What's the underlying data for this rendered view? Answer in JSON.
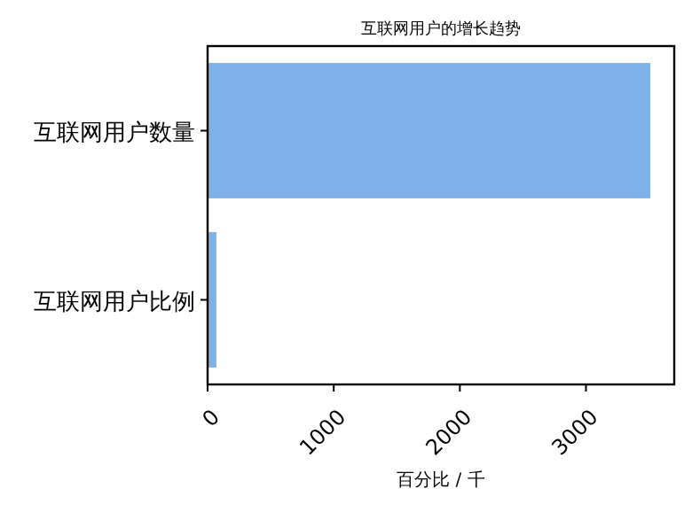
{
  "chart_data": {
    "type": "bar",
    "orientation": "horizontal",
    "title": "互联网用户的增长趋势",
    "xlabel": "百分比 / 千",
    "categories": [
      "互联网用户数量",
      "互联网用户比例"
    ],
    "values": [
      3510,
      70
    ],
    "color": "#7fb1e8",
    "xlim": [
      0,
      3700
    ],
    "xticks": [
      0,
      1000,
      2000,
      3000
    ],
    "grid": false
  }
}
